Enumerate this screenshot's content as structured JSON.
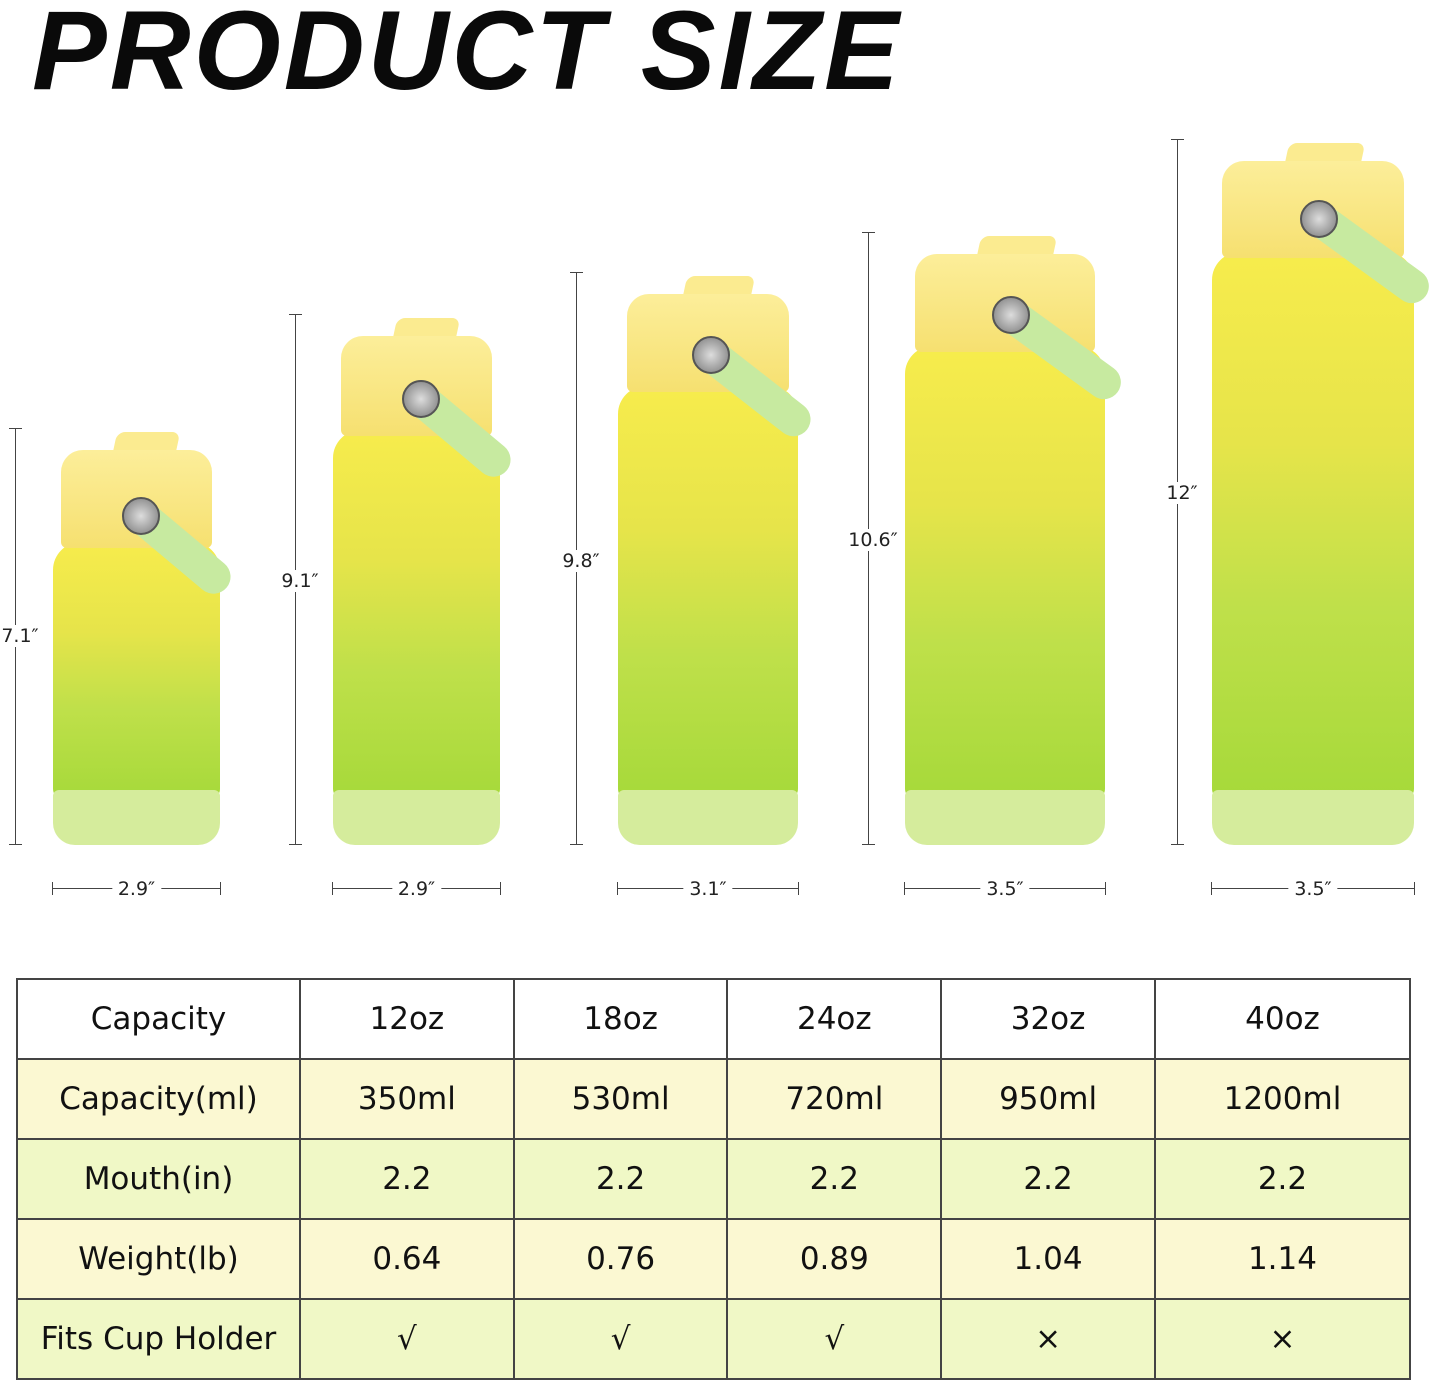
{
  "title": "PRODUCT SIZE",
  "colors": {
    "bottle_top": "#f7ec4c",
    "bottle_bottom": "#a6d93a",
    "cap": "#fbeb90",
    "handle": "#c7eaa0",
    "row_yellow": "#fbf8d2",
    "row_green": "#f0f8c6"
  },
  "bottles": [
    {
      "height": "7.1″",
      "width": "2.9″"
    },
    {
      "height": "9.1″",
      "width": "2.9″"
    },
    {
      "height": "9.8″",
      "width": "3.1″"
    },
    {
      "height": "10.6″",
      "width": "3.5″"
    },
    {
      "height": "12″",
      "width": "3.5″"
    }
  ],
  "table": {
    "rows": [
      [
        "Capacity",
        "12oz",
        "18oz",
        "24oz",
        "32oz",
        "40oz"
      ],
      [
        "Capacity(ml)",
        "350ml",
        "530ml",
        "720ml",
        "950ml",
        "1200ml"
      ],
      [
        "Mouth(in)",
        "2.2",
        "2.2",
        "2.2",
        "2.2",
        "2.2"
      ],
      [
        "Weight(lb)",
        "0.64",
        "0.76",
        "0.89",
        "1.04",
        "1.14"
      ],
      [
        "Fits Cup Holder",
        "√",
        "√",
        "√",
        "×",
        "×"
      ]
    ]
  }
}
